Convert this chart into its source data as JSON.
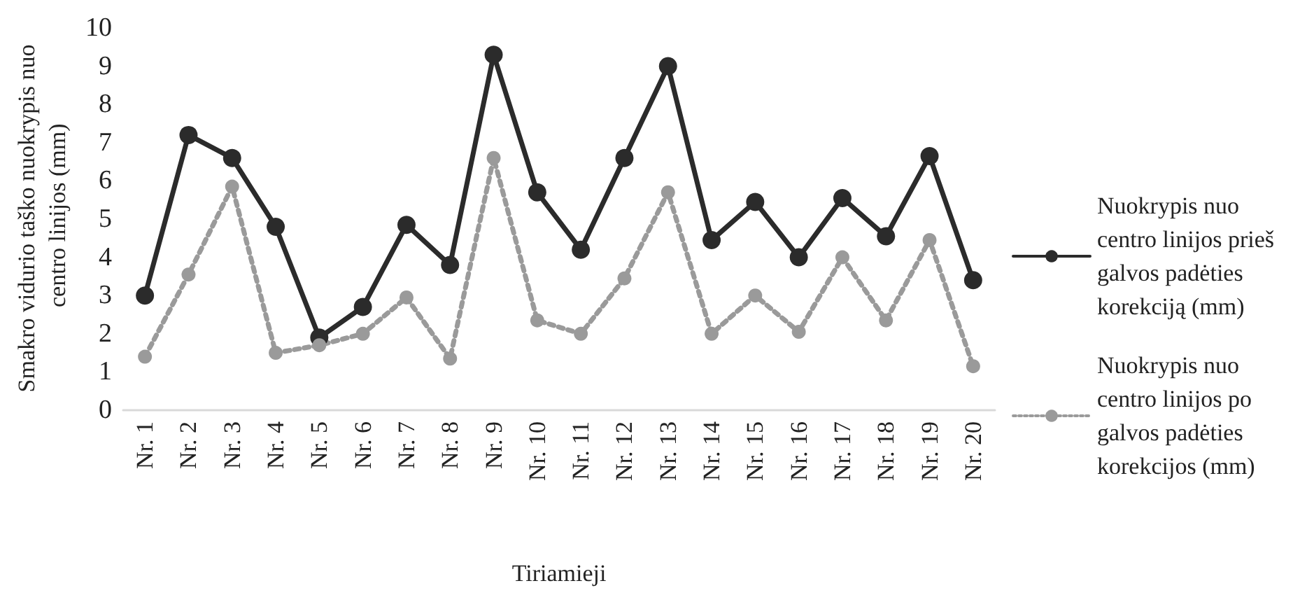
{
  "chart_data": {
    "type": "line",
    "xlabel": "Tiriamieji",
    "ylabel": "Smakro vidurio taško nuokrypis nuo centro linijos (mm)",
    "categories": [
      "Nr. 1",
      "Nr. 2",
      "Nr. 3",
      "Nr. 4",
      "Nr. 5",
      "Nr. 6",
      "Nr. 7",
      "Nr. 8",
      "Nr. 9",
      "Nr. 10",
      "Nr. 11",
      "Nr. 12",
      "Nr. 13",
      "Nr. 14",
      "Nr. 15",
      "Nr. 16",
      "Nr. 17",
      "Nr. 18",
      "Nr. 19",
      "Nr. 20"
    ],
    "series": [
      {
        "name": "Nuokrypis nuo centro linijos prieš galvos padėties korekciją (mm)",
        "color": "#2b2b2b",
        "line_style": "solid",
        "values": [
          3.0,
          7.2,
          6.6,
          4.8,
          1.9,
          2.7,
          4.85,
          3.8,
          9.3,
          5.7,
          4.2,
          6.6,
          9.0,
          4.45,
          5.45,
          4.0,
          5.55,
          4.55,
          6.65,
          3.4
        ]
      },
      {
        "name": "Nuokrypis nuo centro linijos po galvos padėties korekcijos (mm)",
        "color": "#9a9a9a",
        "line_style": "dotted",
        "values": [
          1.4,
          3.55,
          5.85,
          1.5,
          1.7,
          2.0,
          2.95,
          1.35,
          6.6,
          2.35,
          2.0,
          3.45,
          5.7,
          2.0,
          3.0,
          2.05,
          4.0,
          2.35,
          4.45,
          1.15
        ]
      }
    ],
    "ylim": [
      0,
      10
    ],
    "yticks": [
      0,
      1,
      2,
      3,
      4,
      5,
      6,
      7,
      8,
      9,
      10
    ],
    "grid": false,
    "legend": "right",
    "marker": "circle"
  }
}
